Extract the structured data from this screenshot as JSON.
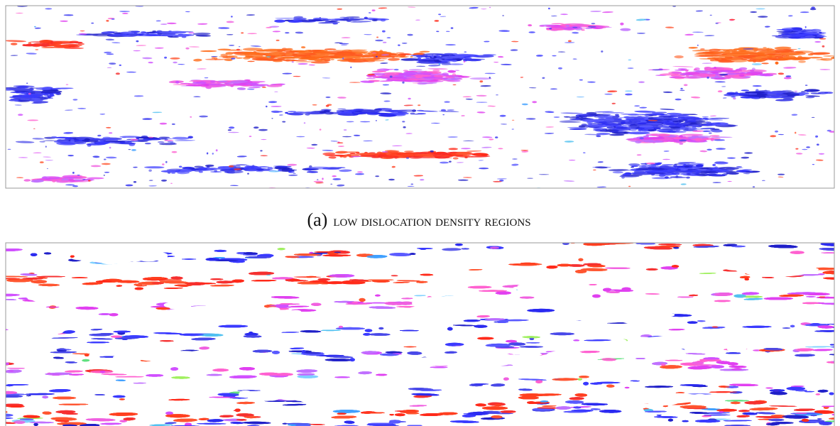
{
  "caption": {
    "label": "(a)",
    "text": "low dislocation density regions"
  }
}
